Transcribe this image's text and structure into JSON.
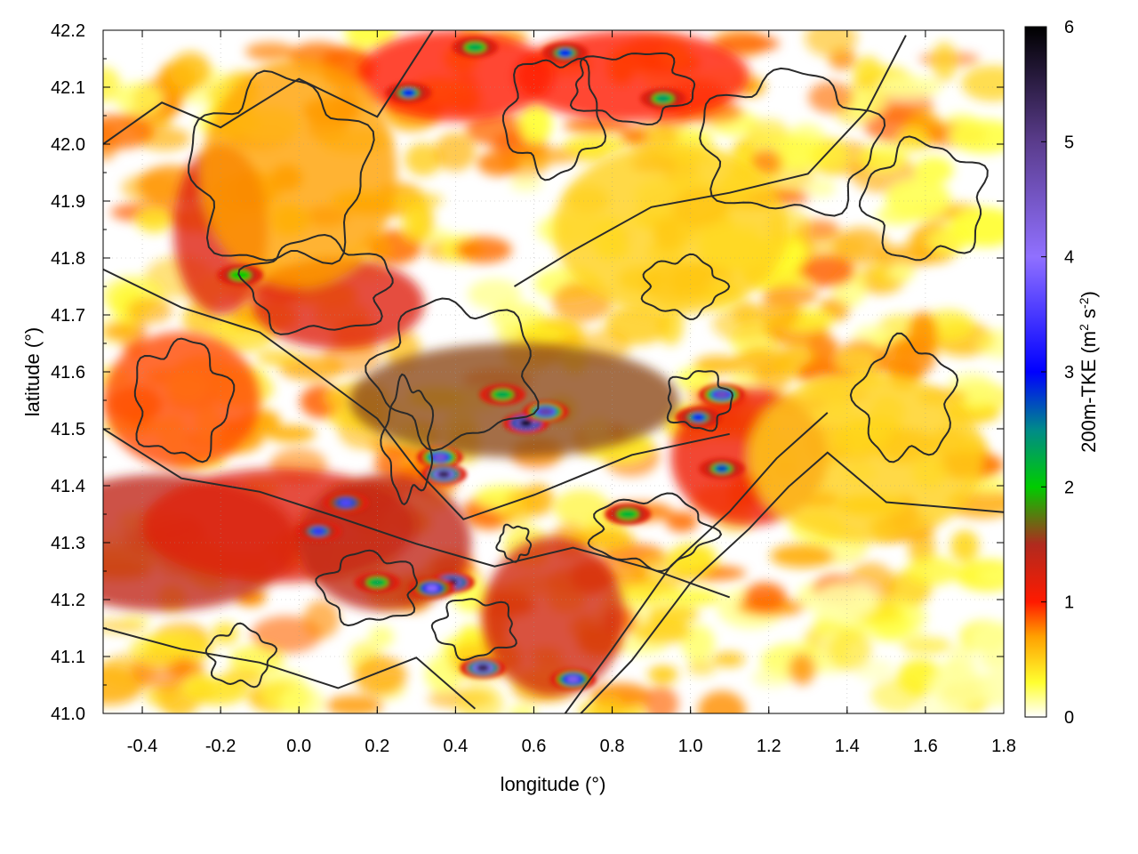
{
  "chart_data": {
    "type": "heatmap",
    "title": "",
    "xlabel": "longitude (°)",
    "ylabel": "latitude (°)",
    "xlim": [
      -0.5,
      1.8
    ],
    "ylim": [
      41.0,
      42.2
    ],
    "x_ticks": [
      "-0.4",
      "-0.2",
      "0.0",
      "0.2",
      "0.4",
      "0.6",
      "0.8",
      "1.0",
      "1.2",
      "1.4",
      "1.6",
      "1.8"
    ],
    "x_tick_values": [
      -0.4,
      -0.2,
      0.0,
      0.2,
      0.4,
      0.6,
      0.8,
      1.0,
      1.2,
      1.4,
      1.6,
      1.8
    ],
    "y_ticks": [
      "41.0",
      "41.1",
      "41.2",
      "41.3",
      "41.4",
      "41.5",
      "41.6",
      "41.7",
      "41.8",
      "41.9",
      "42.0",
      "42.1",
      "42.2"
    ],
    "y_tick_values": [
      41.0,
      41.1,
      41.2,
      41.3,
      41.4,
      41.5,
      41.6,
      41.7,
      41.8,
      41.9,
      42.0,
      42.1,
      42.2
    ],
    "grid": true,
    "colorbar": {
      "label_prefix": "200m-TKE (m",
      "label_sup1": "2",
      "label_mid": " s",
      "label_sup2": "-2",
      "label_suffix": ")",
      "range": [
        0,
        6
      ],
      "ticks": [
        "0",
        "1",
        "2",
        "3",
        "4",
        "5",
        "6"
      ],
      "tick_values": [
        0,
        1,
        2,
        3,
        4,
        5,
        6
      ],
      "colormap": [
        {
          "v": 0.0,
          "c": "#ffffff"
        },
        {
          "v": 0.3,
          "c": "#ffff30"
        },
        {
          "v": 0.7,
          "c": "#ffa000"
        },
        {
          "v": 1.0,
          "c": "#ff1a00"
        },
        {
          "v": 1.5,
          "c": "#b02a1e"
        },
        {
          "v": 2.0,
          "c": "#00cc00"
        },
        {
          "v": 2.5,
          "c": "#008a8a"
        },
        {
          "v": 3.0,
          "c": "#0000ff"
        },
        {
          "v": 4.0,
          "c": "#9070ff"
        },
        {
          "v": 5.0,
          "c": "#5a3c8c"
        },
        {
          "v": 6.0,
          "c": "#000000"
        }
      ]
    },
    "hotspots": [
      {
        "lon": 0.58,
        "lat": 41.51,
        "tke": 6.0
      },
      {
        "lon": 0.63,
        "lat": 41.53,
        "tke": 4.8
      },
      {
        "lon": 0.36,
        "lat": 41.45,
        "tke": 4.4
      },
      {
        "lon": 0.37,
        "lat": 41.42,
        "tke": 5.5
      },
      {
        "lon": 0.52,
        "lat": 41.56,
        "tke": 2.3
      },
      {
        "lon": 1.08,
        "lat": 41.56,
        "tke": 4.6
      },
      {
        "lon": 1.02,
        "lat": 41.52,
        "tke": 3.1
      },
      {
        "lon": 0.39,
        "lat": 41.23,
        "tke": 5.8
      },
      {
        "lon": 0.34,
        "lat": 41.22,
        "tke": 4.0
      },
      {
        "lon": 0.47,
        "lat": 41.08,
        "tke": 5.5
      },
      {
        "lon": 0.7,
        "lat": 41.06,
        "tke": 4.2
      },
      {
        "lon": 0.12,
        "lat": 41.37,
        "tke": 3.6
      },
      {
        "lon": 0.05,
        "lat": 41.32,
        "tke": 3.4
      },
      {
        "lon": 0.2,
        "lat": 41.23,
        "tke": 2.3
      },
      {
        "lon": 0.45,
        "lat": 42.17,
        "tke": 2.3
      },
      {
        "lon": 0.68,
        "lat": 42.16,
        "tke": 3.0
      },
      {
        "lon": 0.28,
        "lat": 42.09,
        "tke": 3.0
      },
      {
        "lon": 0.93,
        "lat": 42.08,
        "tke": 2.4
      },
      {
        "lon": -0.15,
        "lat": 41.77,
        "tke": 2.0
      },
      {
        "lon": 1.08,
        "lat": 41.43,
        "tke": 2.8
      },
      {
        "lon": 0.84,
        "lat": 41.35,
        "tke": 2.2
      }
    ],
    "bands": [
      {
        "lon": 0.55,
        "lat": 41.55,
        "wlon": 0.42,
        "wlat": 0.1,
        "tke": 1.6
      },
      {
        "lon": -0.35,
        "lat": 41.3,
        "wlon": 0.35,
        "wlat": 0.12,
        "tke": 1.4
      },
      {
        "lon": -0.05,
        "lat": 41.33,
        "wlon": 0.35,
        "wlat": 0.1,
        "tke": 1.2
      },
      {
        "lon": 0.22,
        "lat": 41.3,
        "wlon": 0.22,
        "wlat": 0.12,
        "tke": 1.4
      },
      {
        "lon": -0.2,
        "lat": 41.85,
        "wlon": 0.12,
        "wlat": 0.15,
        "tke": 1.2
      },
      {
        "lon": 0.1,
        "lat": 41.72,
        "wlon": 0.22,
        "wlat": 0.08,
        "tke": 1.2
      },
      {
        "lon": 0.65,
        "lat": 41.17,
        "wlon": 0.18,
        "wlat": 0.14,
        "tke": 1.3
      },
      {
        "lon": 1.15,
        "lat": 41.45,
        "wlon": 0.2,
        "wlat": 0.12,
        "tke": 1.1
      },
      {
        "lon": 0.85,
        "lat": 42.12,
        "wlon": 0.3,
        "wlat": 0.08,
        "tke": 1.0
      },
      {
        "lon": 0.4,
        "lat": 42.12,
        "wlon": 0.25,
        "wlat": 0.08,
        "tke": 1.0
      },
      {
        "lon": -0.3,
        "lat": 41.55,
        "wlon": 0.2,
        "wlat": 0.12,
        "tke": 0.9
      },
      {
        "lon": 0.0,
        "lat": 41.95,
        "wlon": 0.25,
        "wlat": 0.2,
        "tke": 0.7
      },
      {
        "lon": 0.95,
        "lat": 41.85,
        "wlon": 0.3,
        "wlat": 0.15,
        "tke": 0.5
      },
      {
        "lon": 1.45,
        "lat": 41.45,
        "wlon": 0.3,
        "wlat": 0.15,
        "tke": 0.5
      }
    ]
  }
}
